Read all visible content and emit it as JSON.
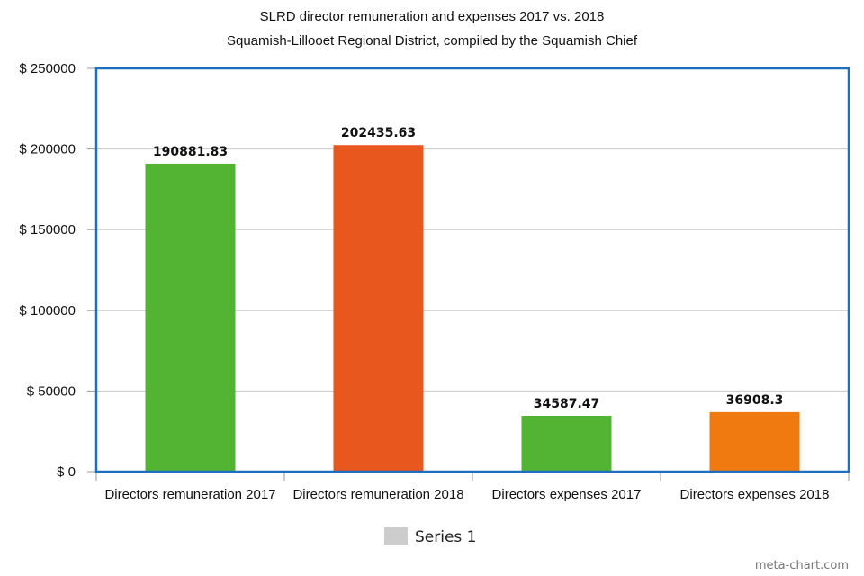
{
  "chart_data": {
    "type": "bar",
    "title": "SLRD director remuneration and expenses 2017 vs. 2018",
    "subtitle": "Squamish-Lillooet Regional District, compiled by the Squamish Chief",
    "categories": [
      "Directors remuneration 2017",
      "Directors remuneration 2018",
      "Directors expenses 2017",
      "Directors expenses 2018"
    ],
    "values": [
      190881.83,
      202435.63,
      34587.47,
      36908.3
    ],
    "data_labels": [
      "190881.83",
      "202435.63",
      "34587.47",
      "36908.3"
    ],
    "bar_colors": [
      "#52b432",
      "#e8571e",
      "#52b432",
      "#f07a10"
    ],
    "series": [
      {
        "name": "Series 1",
        "values": [
          190881.83,
          202435.63,
          34587.47,
          36908.3
        ]
      }
    ],
    "ylim": [
      0,
      250000
    ],
    "yticks": [
      0,
      50000,
      100000,
      150000,
      200000,
      250000
    ],
    "ytick_labels": [
      "$ 0",
      "$ 50000",
      "$ 100000",
      "$ 150000",
      "$ 200000",
      "$ 250000"
    ],
    "xlabel": "",
    "ylabel": "",
    "grid": true,
    "legend_position": "bottom-center",
    "legend_color": "#cccccc",
    "frame_color": "#1f6fc1",
    "grid_color": "#c8c8c8"
  },
  "credit": "meta-chart.com"
}
